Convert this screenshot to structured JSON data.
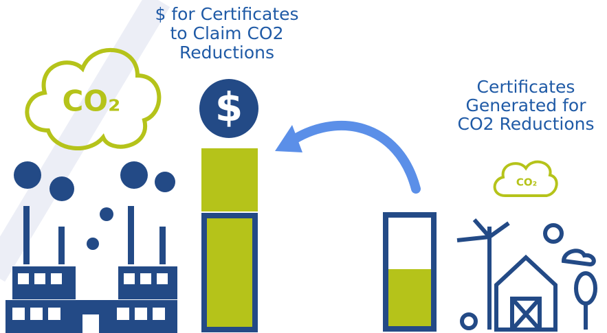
{
  "left_label": {
    "lines": [
      "$ for Certificates",
      "to Claim CO2",
      "Reductions"
    ]
  },
  "right_label": {
    "lines": [
      "Certificates",
      "Generated for",
      "CO2 Reductions"
    ]
  },
  "factory_cloud": "CO₂",
  "farm_cloud": "CO₂",
  "dollar_icon": "$"
}
